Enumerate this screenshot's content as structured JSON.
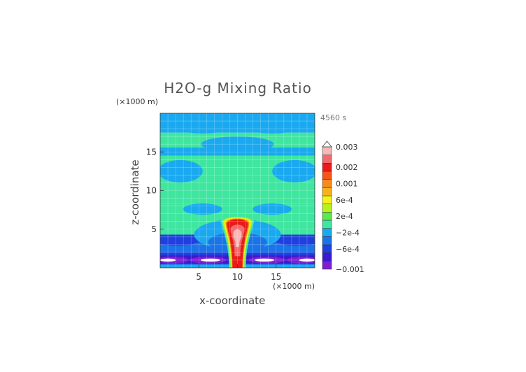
{
  "chart_data": {
    "type": "heatmap",
    "title": "H2O-g Mixing Ratio",
    "xlabel": "x-coordinate",
    "ylabel": "z-coordinate",
    "x_unit": "(×1000 m)",
    "y_unit": "(×1000 m)",
    "time_label": "4560 s",
    "xlim": [
      0,
      20
    ],
    "ylim": [
      0,
      20
    ],
    "x_ticks": [
      {
        "value": 5,
        "label": "5"
      },
      {
        "value": 10,
        "label": "10"
      },
      {
        "value": 15,
        "label": "15"
      }
    ],
    "y_ticks": [
      {
        "value": 5,
        "label": "5"
      },
      {
        "value": 10,
        "label": "10"
      },
      {
        "value": 15,
        "label": "15"
      }
    ],
    "colorbar": {
      "levels": [
        {
          "value": -0.001,
          "color": "#7b1fd1"
        },
        {
          "value": -0.0008,
          "color": "#3a1ad0"
        },
        {
          "value": -0.0006,
          "color": "#1f3fe0"
        },
        {
          "value": -0.0004,
          "color": "#1a74e8"
        },
        {
          "value": -0.0002,
          "color": "#1aa9f0"
        },
        {
          "value": 0,
          "color": "#3fe6a0"
        },
        {
          "value": 0.0002,
          "color": "#5ee64a"
        },
        {
          "value": 0.0004,
          "color": "#b8f01a"
        },
        {
          "value": 0.0006,
          "color": "#f7f01a"
        },
        {
          "value": 0.0008,
          "color": "#f7b21a"
        },
        {
          "value": 0.001,
          "color": "#f78a1a"
        },
        {
          "value": 0.0015,
          "color": "#f7541a"
        },
        {
          "value": 0.002,
          "color": "#e81a1a"
        },
        {
          "value": 0.0025,
          "color": "#f26a6a"
        },
        {
          "value": 0.003,
          "color": "#f7b8b8"
        }
      ],
      "labels": [
        {
          "value": 0.003,
          "label": "0.003"
        },
        {
          "value": 0.002,
          "label": "0.002"
        },
        {
          "value": 0.001,
          "label": "0.001"
        },
        {
          "value": 0.0006,
          "label": "6e-4"
        },
        {
          "value": 0.0002,
          "label": "2e-4"
        },
        {
          "value": -0.0002,
          "label": "−2e-4"
        },
        {
          "value": -0.0006,
          "label": "−6e-4"
        },
        {
          "value": -0.001,
          "label": "−0.001"
        }
      ]
    },
    "background_field": [
      {
        "z": [
          0,
          0.5
        ],
        "value": -0.0004
      },
      {
        "z": [
          0.5,
          1.2
        ],
        "value": -0.0008
      },
      {
        "z": [
          1.2,
          2.0
        ],
        "value": -0.0006
      },
      {
        "z": [
          2.0,
          3.2
        ],
        "value": -0.0004
      },
      {
        "z": [
          3.2,
          4.3
        ],
        "value": -0.0006
      },
      {
        "z": [
          4.3,
          8.3
        ],
        "value": 0
      },
      {
        "z": [
          8.3,
          14.5
        ],
        "value": 0
      },
      {
        "z": [
          14.5,
          15.6
        ],
        "value": -0.0002
      },
      {
        "z": [
          15.6,
          17.5
        ],
        "value": 0
      },
      {
        "z": [
          17.5,
          20
        ],
        "value": -0.0002
      }
    ],
    "features": [
      {
        "name": "plume",
        "center_x": 10,
        "top_z": 6.3,
        "value": 0.003
      }
    ]
  }
}
